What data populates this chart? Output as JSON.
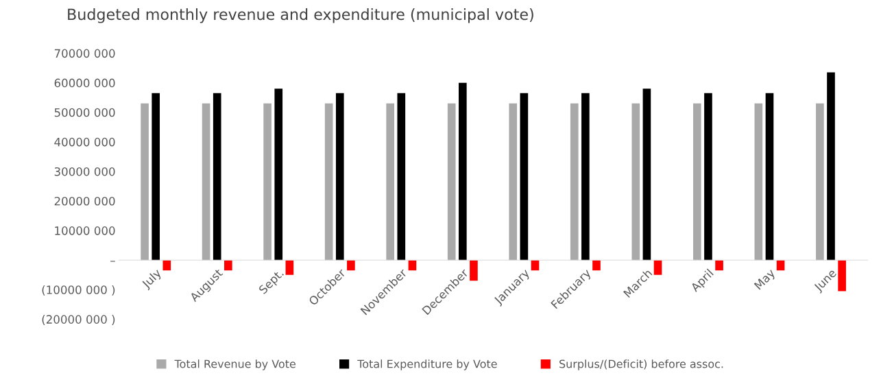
{
  "chart_data": {
    "type": "bar",
    "title": "Budgeted monthly revenue and expenditure (municipal vote)",
    "categories": [
      "July",
      "August",
      "Sept.",
      "October",
      "November",
      "December",
      "January",
      "February",
      "March",
      "April",
      "May",
      "June"
    ],
    "series": [
      {
        "name": "Total Revenue by Vote",
        "color": "#a9a9a9",
        "values": [
          53000000,
          53000000,
          53000000,
          53000000,
          53000000,
          53000000,
          53000000,
          53000000,
          53000000,
          53000000,
          53000000,
          53000000
        ]
      },
      {
        "name": "Total Expenditure by Vote",
        "color": "#000000",
        "values": [
          56500000,
          56500000,
          58000000,
          56500000,
          56500000,
          60000000,
          56500000,
          56500000,
          58000000,
          56500000,
          56500000,
          63500000
        ]
      },
      {
        "name": "Surplus/(Deficit) before assoc.",
        "color": "#ff0000",
        "values": [
          -3500000,
          -3500000,
          -5000000,
          -3500000,
          -3500000,
          -7000000,
          -3500000,
          -3500000,
          -5000000,
          -3500000,
          -3500000,
          -10500000
        ]
      }
    ],
    "ylim": [
      -20000000,
      70000000
    ],
    "yticks": [
      {
        "value": -20000000,
        "label": "(20000 000 )"
      },
      {
        "value": -10000000,
        "label": "(10000 000 )"
      },
      {
        "value": 0,
        "label": "–"
      },
      {
        "value": 10000000,
        "label": "10000 000"
      },
      {
        "value": 20000000,
        "label": "20000 000"
      },
      {
        "value": 30000000,
        "label": "30000 000"
      },
      {
        "value": 40000000,
        "label": "40000 000"
      },
      {
        "value": 50000000,
        "label": "50000 000"
      },
      {
        "value": 60000000,
        "label": "60000 000"
      },
      {
        "value": 70000000,
        "label": "70000 000"
      }
    ],
    "grid": false,
    "legend": "bottom"
  }
}
